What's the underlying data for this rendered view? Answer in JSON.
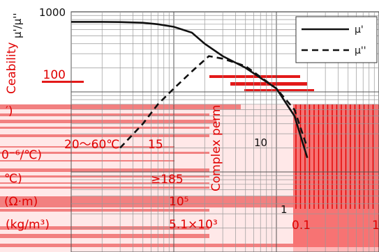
{
  "chart_data": {
    "type": "line",
    "xscale": "log",
    "yscale": "log",
    "xlim": [
      0.01,
      10
    ],
    "ylim": [
      1,
      1000
    ],
    "y_tick_labels": [
      "1000",
      "100",
      "10",
      "1"
    ],
    "x_tick_labels": [
      "0.1",
      "1"
    ],
    "ylabel": "Complex permeability μ'/μ''",
    "legend_position": "top-right",
    "series": [
      {
        "name": "μ'",
        "style": "solid",
        "x": [
          0.01,
          0.02,
          0.03,
          0.05,
          0.07,
          0.1,
          0.15,
          0.2,
          0.3,
          0.5,
          1,
          1.5,
          2
        ],
        "y": [
          750,
          750,
          745,
          730,
          700,
          650,
          550,
          400,
          280,
          200,
          110,
          50,
          15
        ]
      },
      {
        "name": "μ''",
        "style": "dashed",
        "x": [
          0.03,
          0.05,
          0.07,
          0.1,
          0.15,
          0.22,
          0.3,
          0.5,
          1,
          1.5,
          2
        ],
        "y": [
          20,
          40,
          70,
          110,
          180,
          280,
          260,
          210,
          110,
          60,
          20
        ]
      }
    ]
  },
  "colors": {
    "red": "#e00000",
    "curve": "#111111"
  },
  "overlay_text": {
    "left_label_1": "μ'/μ''",
    "left_label_2": "Ceability",
    "left_label_3": "′)",
    "temp_range": "20～60℃",
    "temp_value": "15",
    "row_temp_unit": "0⁻⁶/℃)",
    "row_curie_unit": "℃)",
    "curie_value": "≥185",
    "resistivity_unit": "(Ω·m)",
    "resistivity_value": "10⁵",
    "density_unit": "(kg/m³)",
    "density_value": "5.1×10³",
    "ylabel_overlay": "Complex perm",
    "ten_overlay": "10",
    "one_overlay": "1",
    "x_overlay_1": "0.1",
    "x_overlay_2": "1"
  }
}
